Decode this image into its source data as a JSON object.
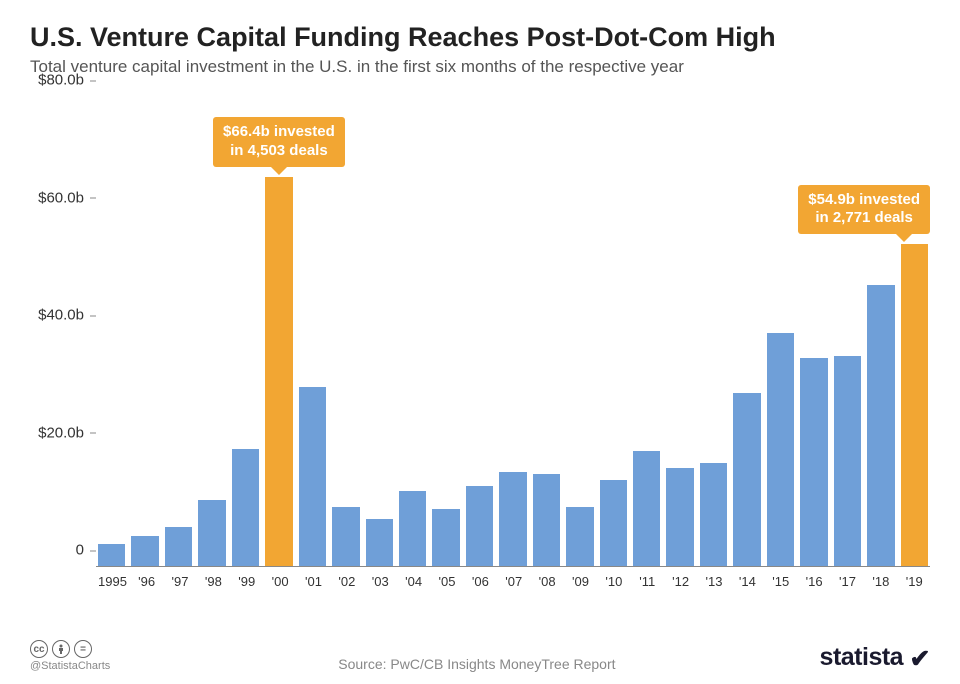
{
  "title": "U.S. Venture Capital Funding Reaches Post-Dot-Com High",
  "subtitle": "Total venture capital investment in the U.S. in the first six months of the respective year",
  "chart": {
    "type": "bar",
    "y": {
      "max": 80,
      "ticks": [
        0,
        20,
        40,
        60,
        80
      ],
      "tick_labels": [
        "0",
        "$20.0b",
        "$40.0b",
        "$60.0b",
        "$80.0b"
      ]
    },
    "bars": [
      {
        "label": "1995",
        "value": 3.8,
        "highlight": false
      },
      {
        "label": "'96",
        "value": 5.2,
        "highlight": false
      },
      {
        "label": "'97",
        "value": 6.6,
        "highlight": false
      },
      {
        "label": "'98",
        "value": 11.2,
        "highlight": false
      },
      {
        "label": "'99",
        "value": 20.0,
        "highlight": false
      },
      {
        "label": "'00",
        "value": 66.4,
        "highlight": true
      },
      {
        "label": "'01",
        "value": 30.5,
        "highlight": false
      },
      {
        "label": "'02",
        "value": 10.0,
        "highlight": false
      },
      {
        "label": "'03",
        "value": 8.0,
        "highlight": false
      },
      {
        "label": "'04",
        "value": 12.8,
        "highlight": false
      },
      {
        "label": "'05",
        "value": 9.8,
        "highlight": false
      },
      {
        "label": "'06",
        "value": 13.6,
        "highlight": false
      },
      {
        "label": "'07",
        "value": 16.0,
        "highlight": false
      },
      {
        "label": "'08",
        "value": 15.7,
        "highlight": false
      },
      {
        "label": "'09",
        "value": 10.0,
        "highlight": false
      },
      {
        "label": "'10",
        "value": 14.6,
        "highlight": false
      },
      {
        "label": "'11",
        "value": 19.6,
        "highlight": false
      },
      {
        "label": "'12",
        "value": 16.8,
        "highlight": false
      },
      {
        "label": "'13",
        "value": 17.6,
        "highlight": false
      },
      {
        "label": "'14",
        "value": 29.5,
        "highlight": false
      },
      {
        "label": "'15",
        "value": 39.8,
        "highlight": false
      },
      {
        "label": "'16",
        "value": 35.5,
        "highlight": false
      },
      {
        "label": "'17",
        "value": 35.8,
        "highlight": false
      },
      {
        "label": "'18",
        "value": 48.0,
        "highlight": false
      },
      {
        "label": "'19",
        "value": 54.9,
        "highlight": true
      }
    ],
    "colors": {
      "default_bar": "#6f9fd8",
      "highlight_bar": "#f2a633",
      "axis": "#888888",
      "background": "#ffffff"
    },
    "callouts": [
      {
        "line1": "$66.4b invested",
        "line2": "in 4,503 deals",
        "bar_index": 5,
        "side": "center"
      },
      {
        "line1": "$54.9b invested",
        "line2": "in 2,771 deals",
        "bar_index": 24,
        "side": "right"
      }
    ]
  },
  "footer": {
    "handle": "@StatistaCharts",
    "source": "Source: PwC/CB Insights MoneyTree Report",
    "logo": "statista",
    "cc_icons": [
      "cc",
      "by",
      "nd"
    ]
  }
}
